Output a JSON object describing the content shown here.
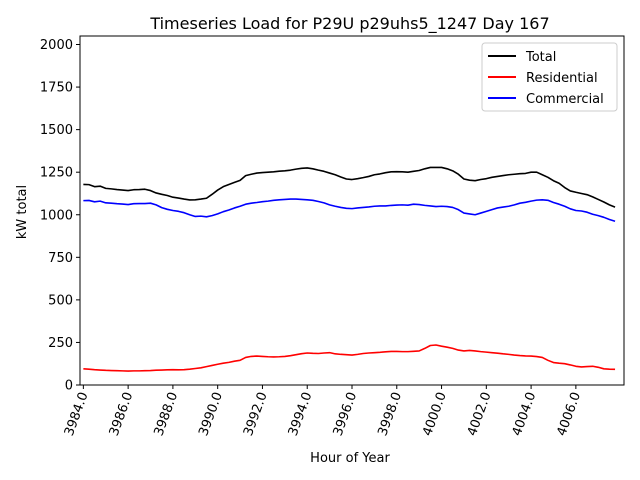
{
  "chart_data": {
    "type": "line",
    "title": "Timeseries Load for P29U p29uhs5_1247  Day 167",
    "xlabel": "Hour of Year",
    "ylabel": "kW total",
    "xlim": [
      3983.85,
      4008.15
    ],
    "ylim": [
      0,
      2050
    ],
    "x_ticks": [
      3984,
      3986,
      3988,
      3990,
      3992,
      3994,
      3996,
      3998,
      4000,
      4002,
      4004,
      4006
    ],
    "x_tick_labels": [
      "3984.0",
      "3986.0",
      "3988.0",
      "3990.0",
      "3992.0",
      "3994.0",
      "3996.0",
      "3998.0",
      "4000.0",
      "4002.0",
      "4004.0",
      "4006.0"
    ],
    "y_ticks": [
      0,
      250,
      500,
      750,
      1000,
      1250,
      1500,
      1750,
      2000
    ],
    "y_tick_labels": [
      "0",
      "250",
      "500",
      "750",
      "1000",
      "1250",
      "1500",
      "1750",
      "2000"
    ],
    "legend_position": "top-right",
    "series": [
      {
        "name": "Total",
        "color": "#000000",
        "points": [
          [
            3984.0,
            1178
          ],
          [
            3984.25,
            1177
          ],
          [
            3984.5,
            1165
          ],
          [
            3984.75,
            1168
          ],
          [
            3985.0,
            1155
          ],
          [
            3985.25,
            1152
          ],
          [
            3985.5,
            1148
          ],
          [
            3985.75,
            1145
          ],
          [
            3986.0,
            1142
          ],
          [
            3986.25,
            1147
          ],
          [
            3986.5,
            1148
          ],
          [
            3986.75,
            1150
          ],
          [
            3987.0,
            1142
          ],
          [
            3987.25,
            1128
          ],
          [
            3987.5,
            1120
          ],
          [
            3987.75,
            1113
          ],
          [
            3988.0,
            1103
          ],
          [
            3988.25,
            1098
          ],
          [
            3988.5,
            1092
          ],
          [
            3988.75,
            1087
          ],
          [
            3989.0,
            1088
          ],
          [
            3989.25,
            1092
          ],
          [
            3989.5,
            1097
          ],
          [
            3989.75,
            1120
          ],
          [
            3990.0,
            1145
          ],
          [
            3990.25,
            1165
          ],
          [
            3990.5,
            1178
          ],
          [
            3990.75,
            1190
          ],
          [
            3991.0,
            1202
          ],
          [
            3991.25,
            1230
          ],
          [
            3991.5,
            1238
          ],
          [
            3991.75,
            1245
          ],
          [
            3992.0,
            1248
          ],
          [
            3992.25,
            1250
          ],
          [
            3992.5,
            1252
          ],
          [
            3992.75,
            1256
          ],
          [
            3993.0,
            1258
          ],
          [
            3993.25,
            1262
          ],
          [
            3993.5,
            1268
          ],
          [
            3993.75,
            1273
          ],
          [
            3994.0,
            1275
          ],
          [
            3994.25,
            1270
          ],
          [
            3994.5,
            1262
          ],
          [
            3994.75,
            1255
          ],
          [
            3995.0,
            1245
          ],
          [
            3995.25,
            1235
          ],
          [
            3995.5,
            1222
          ],
          [
            3995.75,
            1210
          ],
          [
            3996.0,
            1207
          ],
          [
            3996.25,
            1212
          ],
          [
            3996.5,
            1218
          ],
          [
            3996.75,
            1225
          ],
          [
            3997.0,
            1235
          ],
          [
            3997.25,
            1240
          ],
          [
            3997.5,
            1247
          ],
          [
            3997.75,
            1252
          ],
          [
            3998.0,
            1253
          ],
          [
            3998.25,
            1252
          ],
          [
            3998.5,
            1250
          ],
          [
            3998.75,
            1255
          ],
          [
            3999.0,
            1260
          ],
          [
            3999.25,
            1270
          ],
          [
            3999.5,
            1278
          ],
          [
            3999.75,
            1278
          ],
          [
            4000.0,
            1278
          ],
          [
            4000.25,
            1270
          ],
          [
            4000.5,
            1258
          ],
          [
            4000.75,
            1238
          ],
          [
            4001.0,
            1210
          ],
          [
            4001.25,
            1203
          ],
          [
            4001.5,
            1200
          ],
          [
            4001.75,
            1207
          ],
          [
            4002.0,
            1212
          ],
          [
            4002.25,
            1220
          ],
          [
            4002.5,
            1225
          ],
          [
            4002.75,
            1230
          ],
          [
            4003.0,
            1235
          ],
          [
            4003.25,
            1238
          ],
          [
            4003.5,
            1241
          ],
          [
            4003.75,
            1243
          ],
          [
            4004.0,
            1250
          ],
          [
            4004.25,
            1250
          ],
          [
            4004.5,
            1235
          ],
          [
            4004.75,
            1220
          ],
          [
            4005.0,
            1200
          ],
          [
            4005.25,
            1185
          ],
          [
            4005.5,
            1160
          ],
          [
            4005.75,
            1140
          ],
          [
            4006.0,
            1132
          ],
          [
            4006.25,
            1125
          ],
          [
            4006.5,
            1118
          ],
          [
            4006.75,
            1105
          ],
          [
            4007.0,
            1090
          ],
          [
            4007.25,
            1075
          ],
          [
            4007.5,
            1058
          ],
          [
            4007.75,
            1045
          ]
        ]
      },
      {
        "name": "Residential",
        "color": "#ff0000",
        "points": [
          [
            3984.0,
            95
          ],
          [
            3984.25,
            93
          ],
          [
            3984.5,
            90
          ],
          [
            3984.75,
            88
          ],
          [
            3985.0,
            86
          ],
          [
            3985.25,
            85
          ],
          [
            3985.5,
            84
          ],
          [
            3985.75,
            83
          ],
          [
            3986.0,
            82
          ],
          [
            3986.25,
            83
          ],
          [
            3986.5,
            83
          ],
          [
            3986.75,
            84
          ],
          [
            3987.0,
            85
          ],
          [
            3987.25,
            87
          ],
          [
            3987.5,
            88
          ],
          [
            3987.75,
            89
          ],
          [
            3988.0,
            90
          ],
          [
            3988.25,
            89
          ],
          [
            3988.5,
            90
          ],
          [
            3988.75,
            93
          ],
          [
            3989.0,
            97
          ],
          [
            3989.25,
            101
          ],
          [
            3989.5,
            108
          ],
          [
            3989.75,
            115
          ],
          [
            3990.0,
            122
          ],
          [
            3990.25,
            128
          ],
          [
            3990.5,
            133
          ],
          [
            3990.75,
            140
          ],
          [
            3991.0,
            145
          ],
          [
            3991.25,
            162
          ],
          [
            3991.5,
            168
          ],
          [
            3991.75,
            170
          ],
          [
            3992.0,
            168
          ],
          [
            3992.25,
            166
          ],
          [
            3992.5,
            165
          ],
          [
            3992.75,
            166
          ],
          [
            3993.0,
            168
          ],
          [
            3993.25,
            172
          ],
          [
            3993.5,
            178
          ],
          [
            3993.75,
            184
          ],
          [
            3994.0,
            188
          ],
          [
            3994.25,
            186
          ],
          [
            3994.5,
            185
          ],
          [
            3994.75,
            188
          ],
          [
            3995.0,
            190
          ],
          [
            3995.25,
            183
          ],
          [
            3995.5,
            180
          ],
          [
            3995.75,
            178
          ],
          [
            3996.0,
            176
          ],
          [
            3996.25,
            180
          ],
          [
            3996.5,
            185
          ],
          [
            3996.75,
            188
          ],
          [
            3997.0,
            190
          ],
          [
            3997.25,
            192
          ],
          [
            3997.5,
            195
          ],
          [
            3997.75,
            197
          ],
          [
            3998.0,
            197
          ],
          [
            3998.25,
            196
          ],
          [
            3998.5,
            196
          ],
          [
            3998.75,
            198
          ],
          [
            3999.0,
            200
          ],
          [
            3999.25,
            215
          ],
          [
            3999.5,
            232
          ],
          [
            3999.75,
            235
          ],
          [
            4000.0,
            228
          ],
          [
            4000.25,
            222
          ],
          [
            4000.5,
            215
          ],
          [
            4000.75,
            205
          ],
          [
            4001.0,
            200
          ],
          [
            4001.25,
            203
          ],
          [
            4001.5,
            200
          ],
          [
            4001.75,
            196
          ],
          [
            4002.0,
            193
          ],
          [
            4002.25,
            190
          ],
          [
            4002.5,
            187
          ],
          [
            4002.75,
            183
          ],
          [
            4003.0,
            180
          ],
          [
            4003.25,
            176
          ],
          [
            4003.5,
            173
          ],
          [
            4003.75,
            171
          ],
          [
            4004.0,
            170
          ],
          [
            4004.25,
            167
          ],
          [
            4004.5,
            162
          ],
          [
            4004.75,
            145
          ],
          [
            4005.0,
            132
          ],
          [
            4005.25,
            128
          ],
          [
            4005.5,
            125
          ],
          [
            4005.75,
            118
          ],
          [
            4006.0,
            110
          ],
          [
            4006.25,
            106
          ],
          [
            4006.5,
            108
          ],
          [
            4006.75,
            110
          ],
          [
            4007.0,
            104
          ],
          [
            4007.25,
            95
          ],
          [
            4007.5,
            93
          ],
          [
            4007.75,
            92
          ]
        ]
      },
      {
        "name": "Commercial",
        "color": "#0000ff",
        "points": [
          [
            3984.0,
            1083
          ],
          [
            3984.25,
            1084
          ],
          [
            3984.5,
            1076
          ],
          [
            3984.75,
            1080
          ],
          [
            3985.0,
            1070
          ],
          [
            3985.25,
            1068
          ],
          [
            3985.5,
            1065
          ],
          [
            3985.75,
            1063
          ],
          [
            3986.0,
            1060
          ],
          [
            3986.25,
            1065
          ],
          [
            3986.5,
            1066
          ],
          [
            3986.75,
            1066
          ],
          [
            3987.0,
            1068
          ],
          [
            3987.25,
            1058
          ],
          [
            3987.5,
            1042
          ],
          [
            3987.75,
            1032
          ],
          [
            3988.0,
            1025
          ],
          [
            3988.25,
            1020
          ],
          [
            3988.5,
            1012
          ],
          [
            3988.75,
            1000
          ],
          [
            3989.0,
            990
          ],
          [
            3989.25,
            992
          ],
          [
            3989.5,
            988
          ],
          [
            3989.75,
            995
          ],
          [
            3990.0,
            1005
          ],
          [
            3990.25,
            1018
          ],
          [
            3990.5,
            1028
          ],
          [
            3990.75,
            1040
          ],
          [
            3991.0,
            1050
          ],
          [
            3991.25,
            1062
          ],
          [
            3991.5,
            1068
          ],
          [
            3991.75,
            1072
          ],
          [
            3992.0,
            1077
          ],
          [
            3992.25,
            1080
          ],
          [
            3992.5,
            1085
          ],
          [
            3992.75,
            1088
          ],
          [
            3993.0,
            1090
          ],
          [
            3993.25,
            1092
          ],
          [
            3993.5,
            1092
          ],
          [
            3993.75,
            1090
          ],
          [
            3994.0,
            1088
          ],
          [
            3994.25,
            1085
          ],
          [
            3994.5,
            1078
          ],
          [
            3994.75,
            1070
          ],
          [
            3995.0,
            1058
          ],
          [
            3995.25,
            1050
          ],
          [
            3995.5,
            1043
          ],
          [
            3995.75,
            1038
          ],
          [
            3996.0,
            1036
          ],
          [
            3996.25,
            1040
          ],
          [
            3996.5,
            1043
          ],
          [
            3996.75,
            1046
          ],
          [
            3997.0,
            1050
          ],
          [
            3997.25,
            1052
          ],
          [
            3997.5,
            1052
          ],
          [
            3997.75,
            1055
          ],
          [
            3998.0,
            1057
          ],
          [
            3998.25,
            1058
          ],
          [
            3998.5,
            1056
          ],
          [
            3998.75,
            1062
          ],
          [
            3999.0,
            1060
          ],
          [
            3999.25,
            1055
          ],
          [
            3999.5,
            1052
          ],
          [
            3999.75,
            1048
          ],
          [
            4000.0,
            1050
          ],
          [
            4000.25,
            1048
          ],
          [
            4000.5,
            1043
          ],
          [
            4000.75,
            1030
          ],
          [
            4001.0,
            1010
          ],
          [
            4001.25,
            1005
          ],
          [
            4001.5,
            1000
          ],
          [
            4001.75,
            1010
          ],
          [
            4002.0,
            1020
          ],
          [
            4002.25,
            1030
          ],
          [
            4002.5,
            1040
          ],
          [
            4002.75,
            1045
          ],
          [
            4003.0,
            1050
          ],
          [
            4003.25,
            1058
          ],
          [
            4003.5,
            1068
          ],
          [
            4003.75,
            1073
          ],
          [
            4004.0,
            1080
          ],
          [
            4004.25,
            1086
          ],
          [
            4004.5,
            1088
          ],
          [
            4004.75,
            1085
          ],
          [
            4005.0,
            1072
          ],
          [
            4005.25,
            1062
          ],
          [
            4005.5,
            1050
          ],
          [
            4005.75,
            1035
          ],
          [
            4006.0,
            1025
          ],
          [
            4006.25,
            1022
          ],
          [
            4006.5,
            1015
          ],
          [
            4006.75,
            1003
          ],
          [
            4007.0,
            995
          ],
          [
            4007.25,
            985
          ],
          [
            4007.5,
            972
          ],
          [
            4007.75,
            962
          ]
        ]
      }
    ]
  }
}
